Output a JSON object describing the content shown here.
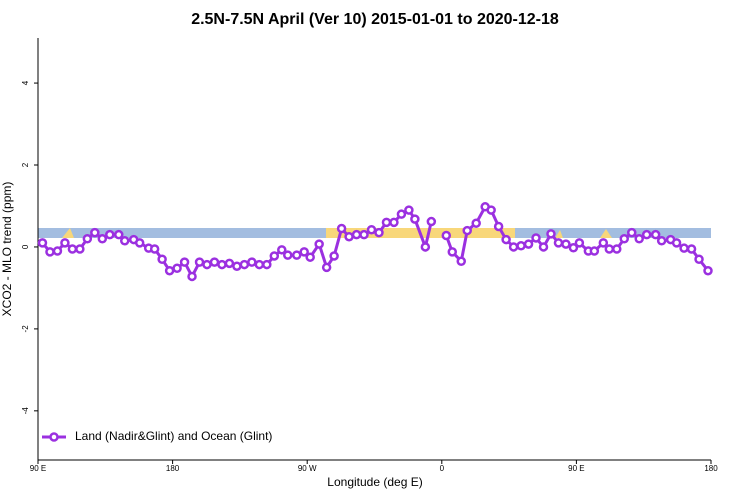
{
  "chart_data": {
    "type": "line",
    "title": "2.5N-7.5N April (Ver 10)   2015-01-01 to 2020-12-18",
    "x_label": "Longitude (deg E)",
    "y_label": "XCO2 - MLO trend (ppm)",
    "xlim": [
      90,
      540
    ],
    "ylim": [
      -5.2,
      5.1
    ],
    "xticks": [
      {
        "value": 90,
        "label": "90 E"
      },
      180,
      {
        "value": 270,
        "label": "90 W"
      },
      {
        "value": 360,
        "label": "0"
      },
      {
        "value": 450,
        "label": "90 E"
      },
      {
        "value": 540,
        "label": "180"
      }
    ],
    "yticks": [
      -4,
      -2,
      0,
      2,
      4
    ],
    "legend": "bottom-left",
    "x": [
      93,
      98,
      103,
      108,
      113,
      118,
      123,
      128,
      133,
      138,
      144,
      148,
      154,
      158,
      164,
      168,
      173,
      178,
      183,
      188,
      193,
      198,
      203,
      208,
      213,
      218,
      223,
      228,
      233,
      238,
      243,
      248,
      253,
      257,
      263,
      268,
      272,
      278,
      283,
      288,
      293,
      298,
      303,
      308,
      313,
      318,
      323,
      328,
      333,
      338,
      342,
      349,
      353,
      358,
      363,
      367,
      373,
      377,
      383,
      389,
      393,
      398,
      403,
      408,
      413,
      418,
      423,
      428,
      433,
      438,
      443,
      448,
      452,
      458,
      462,
      468,
      472,
      477,
      482,
      487,
      492,
      497,
      503,
      507,
      513,
      517,
      522,
      527,
      532,
      538
    ],
    "series": [
      {
        "name": "Land (Nadir&Glint) and Ocean (Glint)",
        "color": "#9b30e0",
        "values": [
          0.1,
          -0.12,
          -0.1,
          0.1,
          -0.05,
          -0.05,
          0.2,
          0.35,
          0.2,
          0.3,
          0.3,
          0.15,
          0.18,
          0.1,
          -0.03,
          -0.05,
          -0.3,
          -0.58,
          -0.52,
          -0.37,
          -0.72,
          -0.37,
          -0.43,
          -0.37,
          -0.43,
          -0.4,
          -0.47,
          -0.43,
          -0.37,
          -0.43,
          -0.43,
          -0.22,
          -0.07,
          -0.2,
          -0.2,
          -0.12,
          -0.25,
          0.07,
          -0.5,
          -0.22,
          0.45,
          0.25,
          0.3,
          0.3,
          0.42,
          0.35,
          0.6,
          0.6,
          0.8,
          0.9,
          0.68,
          0,
          0.62,
          null,
          0.28,
          -0.12,
          -0.35,
          0.4,
          0.58,
          0.98,
          0.9,
          0.5,
          0.18,
          0,
          0.03,
          0.07,
          0.22,
          0,
          0.32,
          0.1,
          0.07,
          -0.02,
          0.1,
          -0.1,
          -0.1,
          0.1,
          -0.05,
          -0.05,
          0.2,
          0.35,
          0.2,
          0.3,
          0.3,
          0.15,
          0.18,
          0.1,
          -0.03,
          -0.05,
          -0.3,
          -0.58
        ]
      }
    ]
  }
}
